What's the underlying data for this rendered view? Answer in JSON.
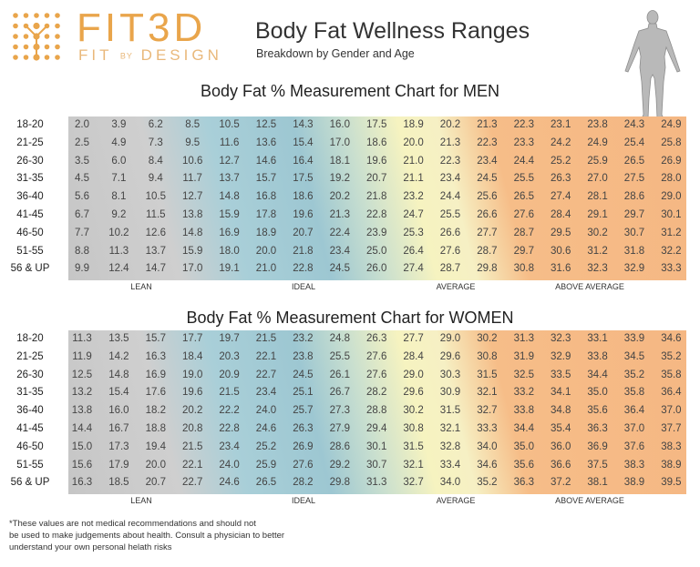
{
  "brand": {
    "name": "FIT3D",
    "tagline_left": "FIT",
    "tagline_by": "BY",
    "tagline_right": "DESIGN",
    "color": "#e9a54b"
  },
  "header": {
    "title": "Body Fat Wellness Ranges",
    "subtitle": "Breakdown by Gender and Age"
  },
  "chart_data": [
    {
      "type": "table",
      "title": "Body Fat % Measurement Chart for MEN",
      "row_labels": [
        "18-20",
        "21-25",
        "26-30",
        "31-35",
        "36-40",
        "41-45",
        "46-50",
        "51-55",
        "56 & UP"
      ],
      "band_labels": [
        "LEAN",
        "IDEAL",
        "AVERAGE",
        "ABOVE AVERAGE"
      ],
      "band_colors": [
        "#c8c8c8",
        "#9dc7d2",
        "#f6f3c0",
        "#f5b783"
      ],
      "values": [
        [
          2.0,
          3.9,
          6.2,
          8.5,
          10.5,
          12.5,
          14.3,
          16.0,
          17.5,
          18.9,
          20.2,
          21.3,
          22.3,
          23.1,
          23.8,
          24.3,
          24.9
        ],
        [
          2.5,
          4.9,
          7.3,
          9.5,
          11.6,
          13.6,
          15.4,
          17.0,
          18.6,
          20.0,
          21.3,
          22.3,
          23.3,
          24.2,
          24.9,
          25.4,
          25.8
        ],
        [
          3.5,
          6.0,
          8.4,
          10.6,
          12.7,
          14.6,
          16.4,
          18.1,
          19.6,
          21.0,
          22.3,
          23.4,
          24.4,
          25.2,
          25.9,
          26.5,
          26.9
        ],
        [
          4.5,
          7.1,
          9.4,
          11.7,
          13.7,
          15.7,
          17.5,
          19.2,
          20.7,
          21.1,
          23.4,
          24.5,
          25.5,
          26.3,
          27.0,
          27.5,
          28.0
        ],
        [
          5.6,
          8.1,
          10.5,
          12.7,
          14.8,
          16.8,
          18.6,
          20.2,
          21.8,
          23.2,
          24.4,
          25.6,
          26.5,
          27.4,
          28.1,
          28.6,
          29.0
        ],
        [
          6.7,
          9.2,
          11.5,
          13.8,
          15.9,
          17.8,
          19.6,
          21.3,
          22.8,
          24.7,
          25.5,
          26.6,
          27.6,
          28.4,
          29.1,
          29.7,
          30.1
        ],
        [
          7.7,
          10.2,
          12.6,
          14.8,
          16.9,
          18.9,
          20.7,
          22.4,
          23.9,
          25.3,
          26.6,
          27.7,
          28.7,
          29.5,
          30.2,
          30.7,
          31.2
        ],
        [
          8.8,
          11.3,
          13.7,
          15.9,
          18.0,
          20.0,
          21.8,
          23.4,
          25.0,
          26.4,
          27.6,
          28.7,
          29.7,
          30.6,
          31.2,
          31.8,
          32.2
        ],
        [
          9.9,
          12.4,
          14.7,
          17.0,
          19.1,
          21.0,
          22.8,
          24.5,
          26.0,
          27.4,
          28.7,
          29.8,
          30.8,
          31.6,
          32.3,
          32.9,
          33.3
        ]
      ]
    },
    {
      "type": "table",
      "title": "Body Fat % Measurement Chart for WOMEN",
      "row_labels": [
        "18-20",
        "21-25",
        "26-30",
        "31-35",
        "36-40",
        "41-45",
        "46-50",
        "51-55",
        "56 & UP"
      ],
      "band_labels": [
        "LEAN",
        "IDEAL",
        "AVERAGE",
        "ABOVE AVERAGE"
      ],
      "band_colors": [
        "#c8c8c8",
        "#9dc7d2",
        "#f6f3c0",
        "#f5b783"
      ],
      "values": [
        [
          11.3,
          13.5,
          15.7,
          17.7,
          19.7,
          21.5,
          23.2,
          24.8,
          26.3,
          27.7,
          29.0,
          30.2,
          31.3,
          32.3,
          33.1,
          33.9,
          34.6
        ],
        [
          11.9,
          14.2,
          16.3,
          18.4,
          20.3,
          22.1,
          23.8,
          25.5,
          27.6,
          28.4,
          29.6,
          30.8,
          31.9,
          32.9,
          33.8,
          34.5,
          35.2
        ],
        [
          12.5,
          14.8,
          16.9,
          19.0,
          20.9,
          22.7,
          24.5,
          26.1,
          27.6,
          29.0,
          30.3,
          31.5,
          32.5,
          33.5,
          34.4,
          35.2,
          35.8
        ],
        [
          13.2,
          15.4,
          17.6,
          19.6,
          21.5,
          23.4,
          25.1,
          26.7,
          28.2,
          29.6,
          30.9,
          32.1,
          33.2,
          34.1,
          35.0,
          35.8,
          36.4
        ],
        [
          13.8,
          16.0,
          18.2,
          20.2,
          22.2,
          24.0,
          25.7,
          27.3,
          28.8,
          30.2,
          31.5,
          32.7,
          33.8,
          34.8,
          35.6,
          36.4,
          37.0
        ],
        [
          14.4,
          16.7,
          18.8,
          20.8,
          22.8,
          24.6,
          26.3,
          27.9,
          29.4,
          30.8,
          32.1,
          33.3,
          34.4,
          35.4,
          36.3,
          37.0,
          37.7
        ],
        [
          15.0,
          17.3,
          19.4,
          21.5,
          23.4,
          25.2,
          26.9,
          28.6,
          30.1,
          31.5,
          32.8,
          34.0,
          35.0,
          36.0,
          36.9,
          37.6,
          38.3
        ],
        [
          15.6,
          17.9,
          20.0,
          22.1,
          24.0,
          25.9,
          27.6,
          29.2,
          30.7,
          32.1,
          33.4,
          34.6,
          35.6,
          36.6,
          37.5,
          38.3,
          38.9
        ],
        [
          16.3,
          18.5,
          20.7,
          22.7,
          24.6,
          26.5,
          28.2,
          29.8,
          31.3,
          32.7,
          34.0,
          35.2,
          36.3,
          37.2,
          38.1,
          38.9,
          39.5
        ]
      ]
    }
  ],
  "footnote": [
    "*These values are not medical recommendations and should not",
    "be used to make judgements about health.  Consult a physician to better",
    "understand your own personal helath risks"
  ]
}
